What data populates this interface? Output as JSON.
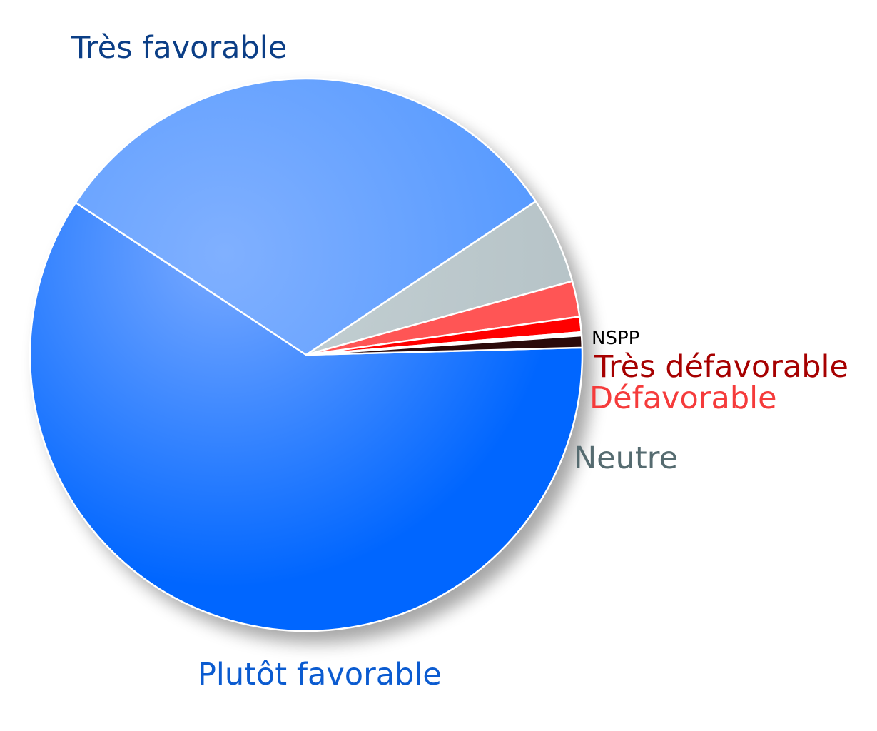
{
  "chart_data": {
    "type": "pie",
    "start_angle_deg": -1.5,
    "direction": "clockwise",
    "slices": [
      {
        "label": "Très favorable",
        "value": 60.0,
        "color": "#0066ff",
        "highlight": "#7aaaff",
        "label_color": "#0b3e86"
      },
      {
        "label": "Plutôt favorable",
        "value": 31.5,
        "color": "#5599ff",
        "highlight": "#80b0ff",
        "label_color": "#0b5bd0"
      },
      {
        "label": "Neutre",
        "value": 5.1,
        "color": "#b7c4c8",
        "highlight": "#c6d2d5",
        "label_color": "#556b70"
      },
      {
        "label": "Défavorable",
        "value": 2.1,
        "color": "#ff5555",
        "highlight": "#ff5555",
        "label_color": "#f53b3b"
      },
      {
        "label": "Très défavorable",
        "value": 0.9,
        "color": "#ff0000",
        "highlight": "#ff0000",
        "label_color": "#a60000"
      },
      {
        "label": "",
        "value": 0.2,
        "color": "#ffffff",
        "highlight": "#ffffff",
        "label_color": "#000000"
      },
      {
        "label": "NSPP",
        "value": 0.7,
        "color": "#2b0a0a",
        "highlight": "#2b0a0a",
        "label_color": "#000000"
      }
    ]
  }
}
